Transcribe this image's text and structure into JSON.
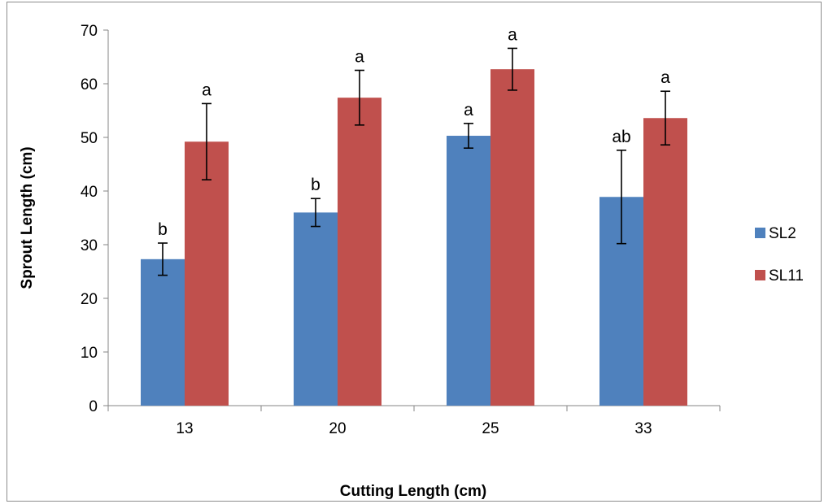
{
  "chart_data": {
    "type": "bar",
    "categories": [
      "13",
      "20",
      "25",
      "33"
    ],
    "xlabel": "Cutting Length (cm)",
    "ylabel": "Sprout Length (cm)",
    "ylim": [
      0,
      70
    ],
    "yticks": [
      "0",
      "10",
      "20",
      "30",
      "40",
      "50",
      "60",
      "70"
    ],
    "grid": false,
    "legend_position": "right",
    "series": [
      {
        "name": "SL2",
        "color": "#4F81BD",
        "values": [
          27.3,
          36.0,
          50.3,
          38.9
        ],
        "errors": [
          3.0,
          2.6,
          2.3,
          8.7
        ],
        "labels": [
          "b",
          "b",
          "a",
          "ab"
        ]
      },
      {
        "name": "SL11",
        "color": "#C0504D",
        "values": [
          49.2,
          57.4,
          62.7,
          53.6
        ],
        "errors": [
          7.1,
          5.1,
          3.9,
          5.0
        ],
        "labels": [
          "a",
          "a",
          "a",
          "a"
        ]
      }
    ]
  }
}
